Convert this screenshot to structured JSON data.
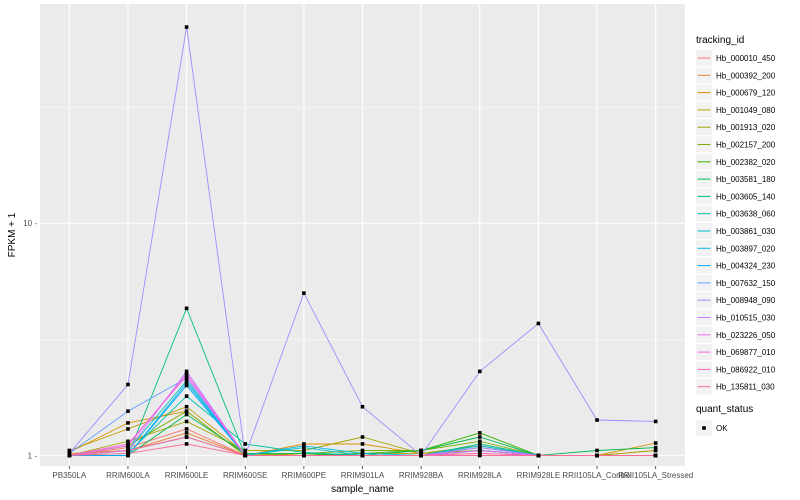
{
  "chart_data": {
    "type": "line",
    "title": "",
    "xlabel": "sample_name",
    "ylabel": "FPKM + 1",
    "y_scale": "log",
    "ylim": [
      0.9,
      88
    ],
    "y_ticks": [
      1,
      10
    ],
    "y_tick_labels": [
      "1 -",
      "10 -"
    ],
    "grid": true,
    "panel_background": "#ebebeb",
    "grid_color": "#ffffff",
    "categories": [
      "PB350LA",
      "RRIM600LA",
      "RRIM600LE",
      "RRIM600SE",
      "RRIM600PE",
      "RRIM901LA",
      "RRIM928BA",
      "RRIM928LA",
      "RRIM928LE",
      "RRII105LA_Control",
      "RRII105LA_Stressed"
    ],
    "legend": {
      "title": "tracking_id",
      "position": "right"
    },
    "legend2": {
      "title": "quant_status",
      "items": [
        {
          "label": "OK",
          "symbol": "point"
        }
      ]
    },
    "series": [
      {
        "name": "Hb_000010_450",
        "color": "#F8766D",
        "values": [
          1.0,
          1.08,
          1.3,
          1.0,
          1.0,
          1.0,
          1.0,
          1.05,
          1.0,
          1.0,
          1.0
        ]
      },
      {
        "name": "Hb_000392_200",
        "color": "#EA8331",
        "values": [
          1.02,
          1.05,
          1.25,
          1.0,
          1.0,
          1.0,
          1.0,
          1.02,
          1.0,
          1.0,
          1.05
        ]
      },
      {
        "name": "Hb_000679_120",
        "color": "#D89000",
        "values": [
          1.03,
          1.38,
          1.55,
          1.0,
          1.12,
          1.12,
          1.02,
          1.05,
          1.0,
          1.0,
          1.13
        ]
      },
      {
        "name": "Hb_001049_080",
        "color": "#C09B00",
        "values": [
          1.05,
          1.3,
          1.62,
          1.02,
          1.0,
          1.02,
          1.02,
          1.05,
          1.0,
          1.0,
          1.0
        ]
      },
      {
        "name": "Hb_001913_020",
        "color": "#A3A500",
        "values": [
          1.0,
          1.15,
          1.4,
          1.05,
          1.05,
          1.2,
          1.02,
          1.1,
          1.0,
          1.0,
          1.05
        ]
      },
      {
        "name": "Hb_002157_200",
        "color": "#7CAE00",
        "values": [
          1.0,
          1.1,
          1.55,
          1.0,
          1.02,
          1.05,
          1.05,
          1.15,
          1.0,
          1.0,
          1.0
        ]
      },
      {
        "name": "Hb_002382_020",
        "color": "#39B600",
        "values": [
          1.0,
          1.05,
          1.2,
          1.0,
          1.0,
          1.02,
          1.05,
          1.25,
          1.0,
          1.0,
          1.0
        ]
      },
      {
        "name": "Hb_003581_180",
        "color": "#00BB4E",
        "values": [
          1.0,
          1.0,
          1.5,
          1.02,
          1.02,
          1.0,
          1.05,
          1.2,
          1.0,
          1.05,
          1.08
        ]
      },
      {
        "name": "Hb_003605_140",
        "color": "#00BF7D",
        "values": [
          1.0,
          1.0,
          4.3,
          1.0,
          1.0,
          1.0,
          1.0,
          1.12,
          1.0,
          1.0,
          1.0
        ]
      },
      {
        "name": "Hb_003638_060",
        "color": "#00C1A3",
        "values": [
          1.0,
          1.02,
          1.8,
          1.12,
          1.03,
          1.0,
          1.0,
          1.08,
          1.0,
          1.0,
          1.0
        ]
      },
      {
        "name": "Hb_003861_030",
        "color": "#00BFC4",
        "values": [
          1.0,
          1.05,
          2.1,
          1.0,
          1.08,
          1.0,
          1.0,
          1.05,
          1.0,
          1.0,
          1.0
        ]
      },
      {
        "name": "Hb_003897_020",
        "color": "#00B8E7",
        "values": [
          1.0,
          1.0,
          2.05,
          1.0,
          1.1,
          1.02,
          1.0,
          1.1,
          1.0,
          1.0,
          1.0
        ]
      },
      {
        "name": "Hb_004324_230",
        "color": "#00A9FF",
        "values": [
          1.0,
          1.0,
          2.0,
          1.0,
          1.0,
          1.0,
          1.0,
          1.05,
          1.0,
          1.0,
          1.0
        ]
      },
      {
        "name": "Hb_007632_150",
        "color": "#619CFF",
        "values": [
          1.02,
          1.55,
          2.15,
          1.0,
          1.0,
          1.0,
          1.0,
          1.0,
          1.0,
          1.0,
          1.0
        ]
      },
      {
        "name": "Hb_008948_090",
        "color": "#9F8CFF",
        "values": [
          1.02,
          2.02,
          70.0,
          1.0,
          5.0,
          1.62,
          1.0,
          2.3,
          3.7,
          1.42,
          1.4
        ]
      },
      {
        "name": "Hb_010515_030",
        "color": "#C77CFF",
        "values": [
          1.0,
          1.05,
          2.3,
          1.0,
          1.0,
          1.0,
          1.0,
          1.08,
          1.0,
          1.0,
          1.0
        ]
      },
      {
        "name": "Hb_023226_050",
        "color": "#E76BF3",
        "values": [
          1.0,
          1.1,
          2.25,
          1.0,
          1.0,
          1.0,
          1.0,
          1.05,
          1.0,
          1.0,
          1.0
        ]
      },
      {
        "name": "Hb_069877_010",
        "color": "#F863DF",
        "values": [
          1.0,
          1.12,
          2.2,
          1.0,
          1.0,
          1.0,
          1.0,
          1.0,
          1.0,
          1.0,
          1.0
        ]
      },
      {
        "name": "Hb_086922_010",
        "color": "#FF62BC",
        "values": [
          1.0,
          1.05,
          1.2,
          1.0,
          1.0,
          1.0,
          1.0,
          1.02,
          1.0,
          1.0,
          1.0
        ]
      },
      {
        "name": "Hb_135811_030",
        "color": "#FF6C91",
        "values": [
          1.0,
          1.02,
          1.12,
          1.0,
          1.0,
          1.0,
          1.0,
          1.0,
          1.0,
          1.0,
          1.0
        ]
      }
    ]
  }
}
